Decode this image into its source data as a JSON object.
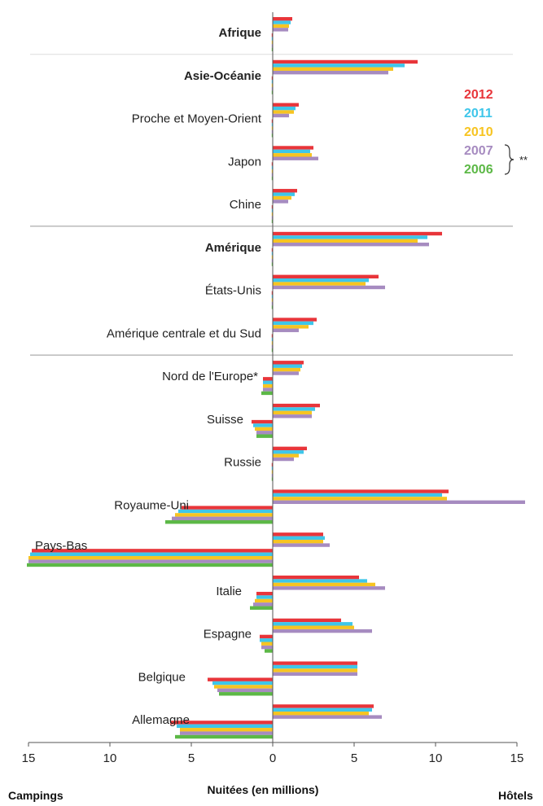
{
  "chart_data": {
    "type": "bar",
    "orientation": "horizontal",
    "xlabel": "Nuitées (en millions)",
    "left_side_label": "Campings",
    "right_side_label": "Hôtels",
    "xlim": [
      -15,
      15
    ],
    "tick_values": [
      -15,
      -10,
      -5,
      0,
      5,
      10,
      15
    ],
    "tick_labels": [
      "15",
      "10",
      "5",
      "0",
      "5",
      "10",
      "15"
    ],
    "legend": {
      "placement": "top-right",
      "note": "**",
      "bracket_years": [
        "2007",
        "2006"
      ],
      "entries": [
        {
          "name": "2012",
          "color": "#e8353a"
        },
        {
          "name": "2011",
          "color": "#3ec6ea"
        },
        {
          "name": "2010",
          "color": "#f7c421"
        },
        {
          "name": "2007",
          "color": "#a68bc0"
        },
        {
          "name": "2006",
          "color": "#5cb846"
        }
      ]
    },
    "series_colors": {
      "2012": "#e8353a",
      "2011": "#3ec6ea",
      "2010": "#f7c421",
      "2007": "#a68bc0",
      "2006": "#5cb846"
    },
    "categories": [
      {
        "name": "Afrique",
        "bold": true,
        "hotels": {
          "2012": 1.2,
          "2011": 1.1,
          "2010": 1.0,
          "2007": 0.95
        },
        "campings": {
          "2012": -0.05,
          "2011": -0.05,
          "2010": -0.05,
          "2007": -0.05,
          "2006": -0.05
        }
      },
      {
        "name": "Asie-Océanie",
        "bold": true,
        "hotels": {
          "2012": 8.9,
          "2011": 8.1,
          "2010": 7.4,
          "2007": 7.1
        },
        "campings": {
          "2012": -0.05,
          "2011": -0.05,
          "2010": -0.05,
          "2007": -0.05,
          "2006": -0.05
        }
      },
      {
        "name": "Proche et Moyen-Orient",
        "bold": false,
        "hotels": {
          "2012": 1.6,
          "2011": 1.4,
          "2010": 1.3,
          "2007": 1.0
        },
        "campings": {
          "2012": -0.05,
          "2011": -0.05,
          "2010": -0.05,
          "2007": -0.05,
          "2006": -0.05
        }
      },
      {
        "name": "Japon",
        "bold": false,
        "hotels": {
          "2012": 2.5,
          "2011": 2.3,
          "2010": 2.4,
          "2007": 2.8
        },
        "campings": {
          "2012": -0.05,
          "2011": -0.05,
          "2010": -0.05,
          "2007": -0.05,
          "2006": -0.05
        }
      },
      {
        "name": "Chine",
        "bold": false,
        "hotels": {
          "2012": 1.5,
          "2011": 1.35,
          "2010": 1.15,
          "2007": 0.95
        },
        "campings": {
          "2012": -0.05,
          "2011": -0.05,
          "2010": -0.05,
          "2007": -0.05,
          "2006": -0.05
        }
      },
      {
        "name": "Amérique",
        "bold": true,
        "hotels": {
          "2012": 10.4,
          "2011": 9.5,
          "2010": 8.9,
          "2007": 9.6
        },
        "campings": {
          "2012": -0.05,
          "2011": -0.05,
          "2010": -0.05,
          "2007": -0.05,
          "2006": -0.05
        }
      },
      {
        "name": "États-Unis",
        "bold": false,
        "hotels": {
          "2012": 6.5,
          "2011": 5.9,
          "2010": 5.7,
          "2007": 6.9
        },
        "campings": {
          "2012": -0.05,
          "2011": -0.05,
          "2010": -0.05,
          "2007": -0.05,
          "2006": -0.05
        }
      },
      {
        "name": "Amérique centrale et du Sud",
        "bold": false,
        "hotels": {
          "2012": 2.7,
          "2011": 2.5,
          "2010": 2.2,
          "2007": 1.6
        },
        "campings": {
          "2012": -0.05,
          "2011": -0.05,
          "2010": -0.05,
          "2007": -0.05,
          "2006": -0.05
        }
      },
      {
        "name": "Nord de l'Europe*",
        "bold": false,
        "hotels": {
          "2012": 1.9,
          "2011": 1.8,
          "2010": 1.7,
          "2007": 1.6
        },
        "campings": {
          "2012": -0.6,
          "2011": -0.6,
          "2010": -0.6,
          "2007": -0.6,
          "2006": -0.7
        }
      },
      {
        "name": "Suisse",
        "bold": false,
        "hotels": {
          "2012": 2.9,
          "2011": 2.6,
          "2010": 2.4,
          "2007": 2.4
        },
        "campings": {
          "2012": -1.3,
          "2011": -1.2,
          "2010": -1.1,
          "2007": -1.0,
          "2006": -1.0
        }
      },
      {
        "name": "Russie",
        "bold": false,
        "hotels": {
          "2012": 2.1,
          "2011": 1.9,
          "2010": 1.6,
          "2007": 1.3
        },
        "campings": {
          "2012": -0.05,
          "2011": -0.05,
          "2010": -0.05,
          "2007": -0.05,
          "2006": -0.05
        }
      },
      {
        "name": "Royaume-Uni",
        "bold": false,
        "hotels": {
          "2012": 10.8,
          "2011": 10.4,
          "2010": 10.7,
          "2007": 15.5
        },
        "campings": {
          "2012": -5.6,
          "2011": -5.8,
          "2010": -6.0,
          "2007": -6.2,
          "2006": -6.6
        }
      },
      {
        "name": "Pays-Bas",
        "bold": false,
        "hotels": {
          "2012": 3.1,
          "2011": 3.2,
          "2010": 3.1,
          "2007": 3.5
        },
        "campings": {
          "2012": -14.8,
          "2011": -14.9,
          "2010": -15.0,
          "2007": -15.0,
          "2006": -15.1
        }
      },
      {
        "name": "Italie",
        "bold": false,
        "hotels": {
          "2012": 5.3,
          "2011": 5.8,
          "2010": 6.3,
          "2007": 6.9
        },
        "campings": {
          "2012": -1.0,
          "2011": -1.0,
          "2010": -1.1,
          "2007": -1.2,
          "2006": -1.4
        }
      },
      {
        "name": "Espagne",
        "bold": false,
        "hotels": {
          "2012": 4.2,
          "2011": 4.9,
          "2010": 5.0,
          "2007": 6.1
        },
        "campings": {
          "2012": -0.8,
          "2011": -0.8,
          "2010": -0.7,
          "2007": -0.7,
          "2006": -0.5
        }
      },
      {
        "name": "Belgique",
        "bold": false,
        "hotels": {
          "2012": 5.2,
          "2011": 5.2,
          "2010": 5.2,
          "2007": 5.2
        },
        "campings": {
          "2012": -4.0,
          "2011": -3.7,
          "2010": -3.6,
          "2007": -3.4,
          "2006": -3.3
        }
      },
      {
        "name": "Allemagne",
        "bold": false,
        "hotels": {
          "2012": 6.2,
          "2011": 6.1,
          "2010": 5.9,
          "2007": 6.7
        },
        "campings": {
          "2012": -6.3,
          "2011": -5.9,
          "2010": -5.7,
          "2007": -5.7,
          "2006": -6.0
        }
      }
    ],
    "group_separators_after": [
      "Afrique",
      "Chine",
      "Amérique centrale et du Sud"
    ]
  }
}
